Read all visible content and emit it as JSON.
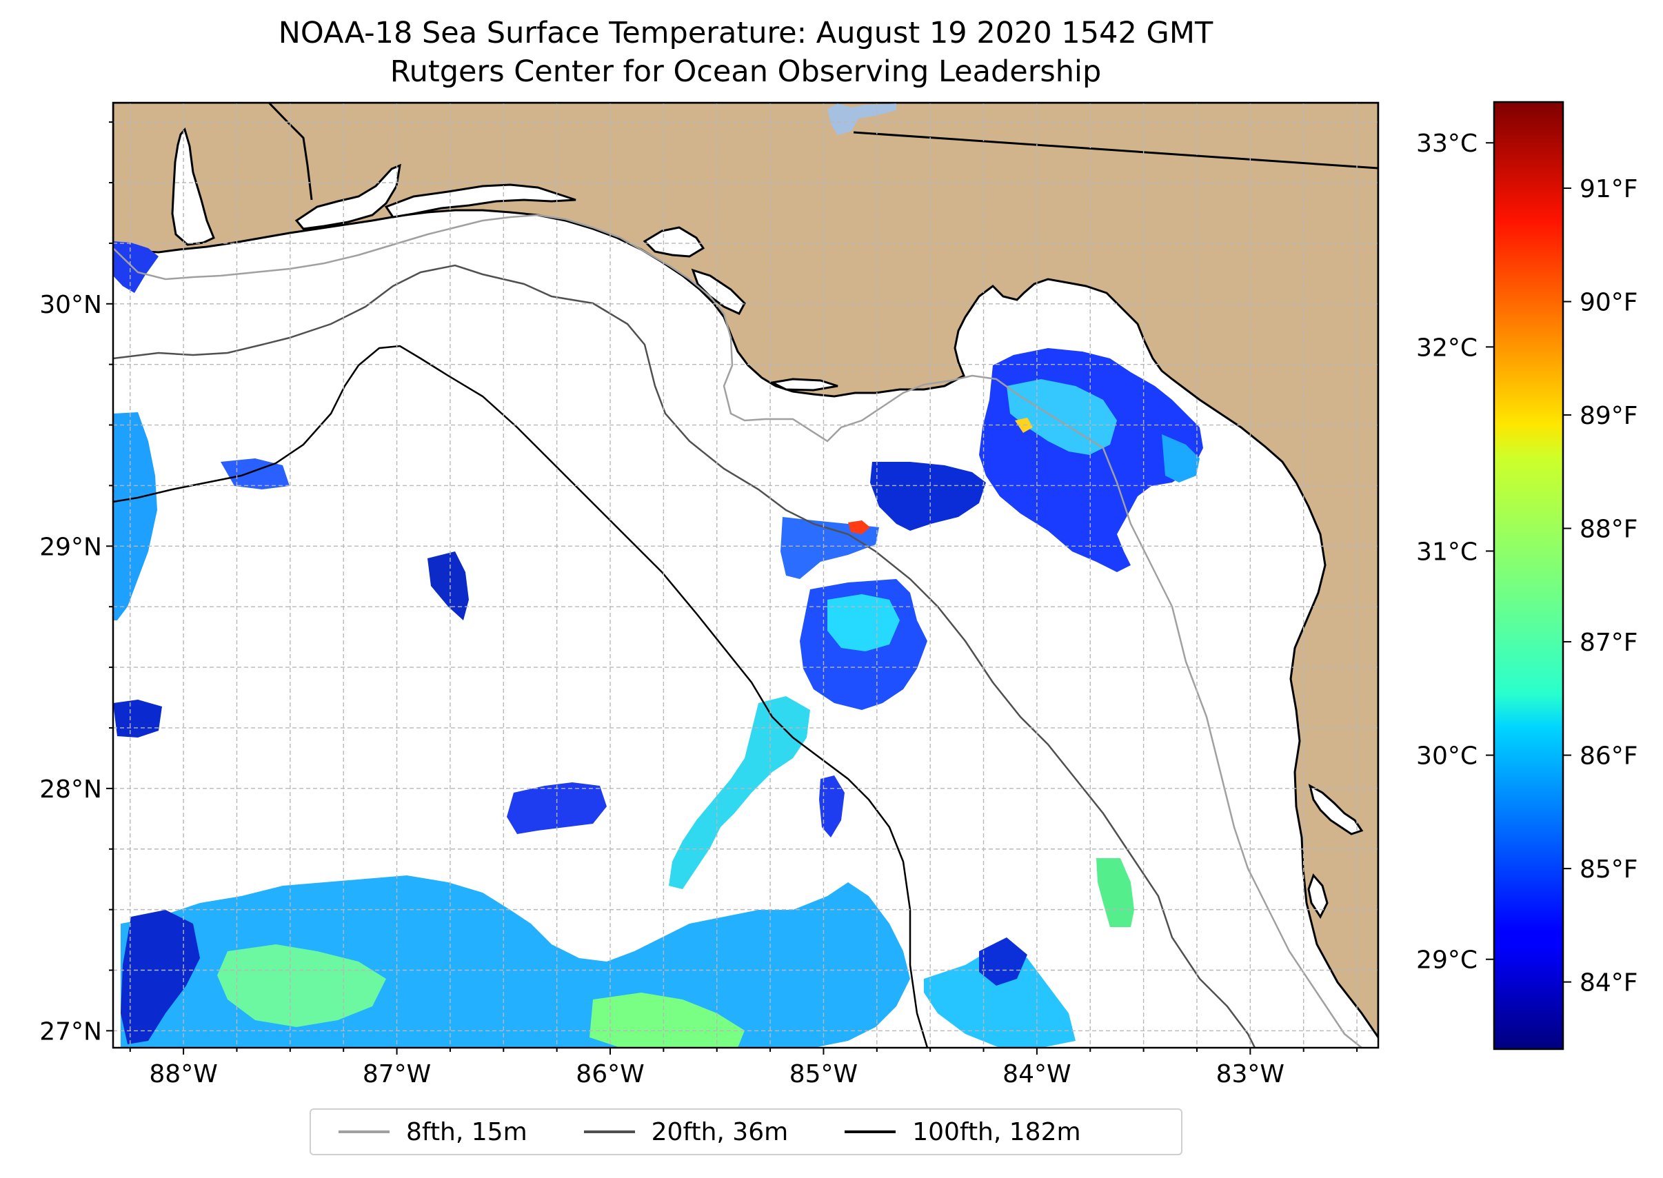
{
  "title": {
    "line1": "NOAA-18 Sea Surface Temperature: August 19 2020 1542 GMT",
    "line2": "Rutgers Center for Ocean Observing Leadership"
  },
  "map_data": {
    "lon_range": [
      -88.33,
      -82.4
    ],
    "lat_range": [
      26.93,
      30.83
    ],
    "lon_ticks": [
      {
        "value": -88,
        "label": "88°W"
      },
      {
        "value": -87,
        "label": "87°W"
      },
      {
        "value": -86,
        "label": "86°W"
      },
      {
        "value": -85,
        "label": "85°W"
      },
      {
        "value": -84,
        "label": "84°W"
      },
      {
        "value": -83,
        "label": "83°W"
      }
    ],
    "lat_ticks": [
      {
        "value": 27,
        "label": "27°N"
      },
      {
        "value": 28,
        "label": "28°N"
      },
      {
        "value": 29,
        "label": "29°N"
      },
      {
        "value": 30,
        "label": "30°N"
      }
    ],
    "gridlines": true,
    "colors": {
      "land": "#d2b48c",
      "ocean": "#ffffff",
      "lake": "#a5c0e0",
      "grid": "#b8b8b8"
    }
  },
  "colorbar": {
    "colormap": "jet",
    "celsius_ticks": [
      {
        "value": 29,
        "label": "29°C"
      },
      {
        "value": 30,
        "label": "30°C"
      },
      {
        "value": 31,
        "label": "31°C"
      },
      {
        "value": 32,
        "label": "32°C"
      },
      {
        "value": 33,
        "label": "33°C"
      }
    ],
    "fahrenheit_ticks": [
      {
        "value": 84,
        "label": "84°F"
      },
      {
        "value": 85,
        "label": "85°F"
      },
      {
        "value": 86,
        "label": "86°F"
      },
      {
        "value": 87,
        "label": "87°F"
      },
      {
        "value": 88,
        "label": "88°F"
      },
      {
        "value": 89,
        "label": "89°F"
      },
      {
        "value": 90,
        "label": "90°F"
      },
      {
        "value": 91,
        "label": "91°F"
      }
    ]
  },
  "legend": {
    "placement": "bottom-center",
    "items": [
      {
        "label": "8fth, 15m",
        "color": "#a0a0a0"
      },
      {
        "label": "20fth, 36m",
        "color": "#505050"
      },
      {
        "label": "100fth, 182m",
        "color": "#000000"
      }
    ]
  }
}
